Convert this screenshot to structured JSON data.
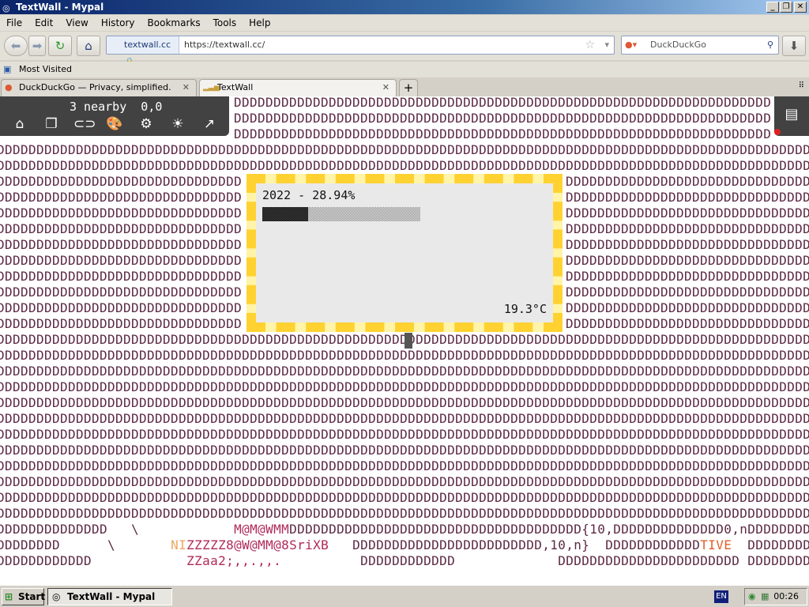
{
  "window": {
    "title": "TextWall - Mypal",
    "controls": [
      "_",
      "❐",
      "✕"
    ]
  },
  "menu": [
    "File",
    "Edit",
    "View",
    "History",
    "Bookmarks",
    "Tools",
    "Help"
  ],
  "nav": {
    "identity": "textwall.cc",
    "url": "https://textwall.cc/",
    "search_placeholder": "DuckDuckGo"
  },
  "bookmarks": {
    "most_visited": "Most Visited"
  },
  "tabs": [
    {
      "label": "DuckDuckGo — Privacy, simplified.",
      "active": false
    },
    {
      "label": "TextWall",
      "active": true
    }
  ],
  "toolbar": {
    "status": "3 nearby  0,0",
    "icons": [
      "home-icon",
      "copy-icon",
      "link-icon",
      "palette-icon",
      "gear-icon",
      "brightness-icon",
      "arrow-up-right-icon"
    ]
  },
  "popup": {
    "title": "2022 - 28.94%",
    "progress_percent": 28.94,
    "temperature": "19.3°C"
  },
  "wall": {
    "fill_char": "D",
    "text_color": "#5c2a44",
    "bottom_lines": [
      [
        {
          "t": "DDDDDDDDDDDDDD   \\            ",
          "c": "#5c2a44"
        },
        {
          "t": "M@M@WMM",
          "c": "#b02a5a"
        },
        {
          "t": "DDDDDDDDDDDDDDDDDDDDDDDDDDDDDDDDDDDDD{10,DDDDDDDDDDDDDD0,nDDDDDDDD",
          "c": "#5c2a44"
        }
      ],
      [
        {
          "t": "DDDDDDDD      \\       ",
          "c": "#5c2a44"
        },
        {
          "t": "NI",
          "c": "#eba860"
        },
        {
          "t": "ZZZZZ8@W@MM@8SriXB",
          "c": "#b02a5a"
        },
        {
          "t": "   DDDDDDDDDDDDDDDDDDDDDDDD,10,n}  DDDDDDDDDDDD",
          "c": "#5c2a44"
        },
        {
          "t": "TIVE",
          "c": "#e0602a"
        },
        {
          "t": "  DDDDDDDD",
          "c": "#5c2a44"
        }
      ],
      [
        {
          "t": "DDDDDDDDDDDD            ",
          "c": "#5c2a44"
        },
        {
          "t": "ZZaa2;,,.,,.",
          "c": "#b02a5a"
        },
        {
          "t": "          DDDDDDDDDDDD             DDDDDDDDDDDDDDDDDDDDDDD DDDDDDDD",
          "c": "#5c2a44"
        }
      ]
    ]
  },
  "taskbar": {
    "start": "Start",
    "task": "TextWall - Mypal",
    "lang": "EN",
    "clock": "00:26"
  }
}
